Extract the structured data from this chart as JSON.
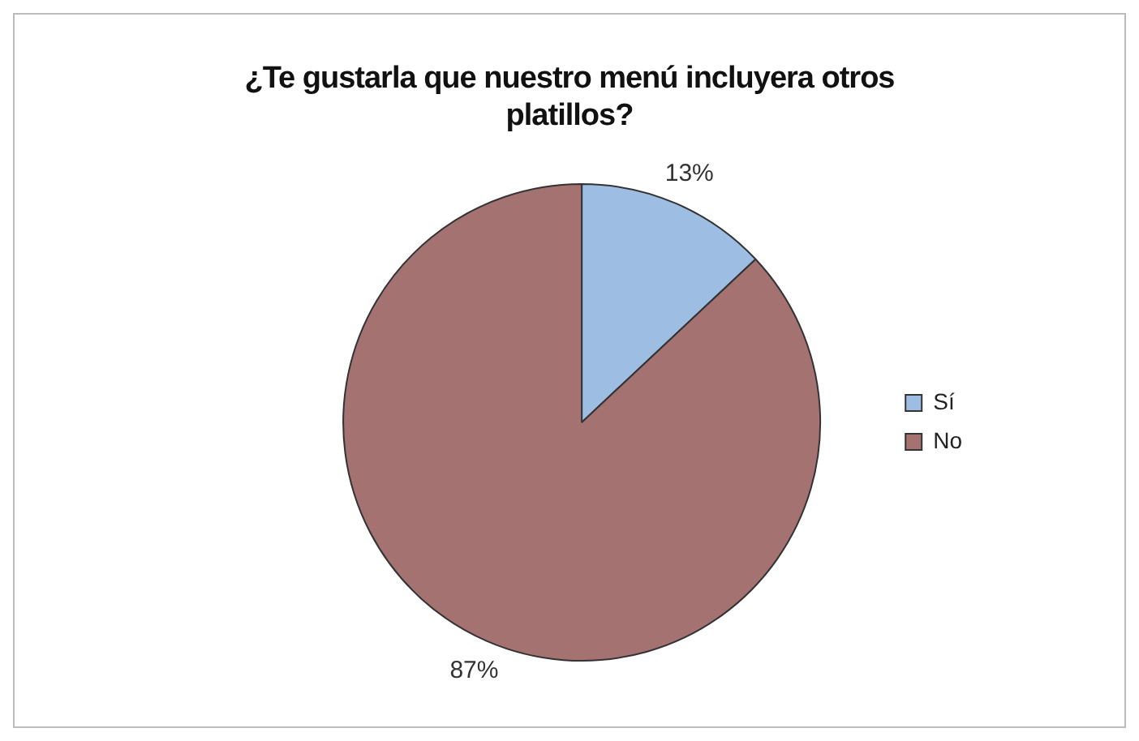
{
  "chart_data": {
    "type": "pie",
    "title": "¿Te gustarla que nuestro menú incluyera otros platillos?",
    "categories": [
      "Sí",
      "No"
    ],
    "values": [
      13,
      87
    ],
    "value_labels": [
      "13%",
      "87%"
    ],
    "colors": [
      "#9dbde3",
      "#a57272"
    ],
    "legend": "right"
  }
}
